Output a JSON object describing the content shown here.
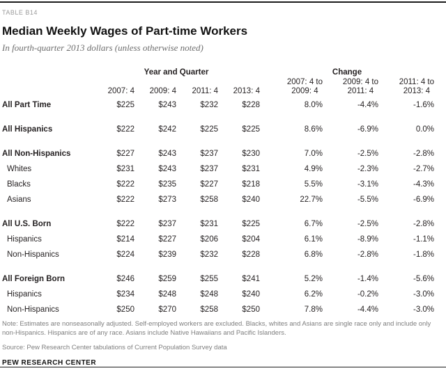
{
  "table_label": "TABLE B14",
  "colors": {
    "rule": "#1a1a1a",
    "text": "#231f20",
    "label_gray": "#9b9b9b",
    "subtitle_gray": "#6d6d6d",
    "note_gray": "#7e7e7e"
  },
  "chart_data": {
    "type": "table",
    "title": "Median Weekly Wages of Part-time Workers",
    "subtitle": "In fourth-quarter 2013 dollars (unless otherwise noted)",
    "column_groups": [
      {
        "label": "Year and Quarter",
        "span": 4
      },
      {
        "label": "Change",
        "span": 3
      }
    ],
    "columns": [
      "2007: 4",
      "2009: 4",
      "2011: 4",
      "2013: 4",
      "2007: 4 to\n2009: 4",
      "2009: 4 to\n2011: 4",
      "2011: 4 to\n2013: 4"
    ],
    "rows": [
      {
        "label": "All Part Time",
        "bold": true,
        "gap_after": true,
        "values": [
          "$225",
          "$243",
          "$232",
          "$228",
          "8.0%",
          "-4.4%",
          "-1.6%"
        ]
      },
      {
        "label": "All Hispanics",
        "bold": true,
        "gap_after": true,
        "values": [
          "$222",
          "$242",
          "$225",
          "$225",
          "8.6%",
          "-6.9%",
          "0.0%"
        ]
      },
      {
        "label": "All Non-Hispanics",
        "bold": true,
        "gap_after": false,
        "values": [
          "$227",
          "$243",
          "$237",
          "$230",
          "7.0%",
          "-2.5%",
          "-2.8%"
        ]
      },
      {
        "label": "Whites",
        "bold": false,
        "gap_after": false,
        "values": [
          "$231",
          "$243",
          "$237",
          "$231",
          "4.9%",
          "-2.3%",
          "-2.7%"
        ]
      },
      {
        "label": "Blacks",
        "bold": false,
        "gap_after": false,
        "values": [
          "$222",
          "$235",
          "$227",
          "$218",
          "5.5%",
          "-3.1%",
          "-4.3%"
        ]
      },
      {
        "label": "Asians",
        "bold": false,
        "gap_after": true,
        "values": [
          "$222",
          "$273",
          "$258",
          "$240",
          "22.7%",
          "-5.5%",
          "-6.9%"
        ]
      },
      {
        "label": "All U.S. Born",
        "bold": true,
        "gap_after": false,
        "values": [
          "$222",
          "$237",
          "$231",
          "$225",
          "6.7%",
          "-2.5%",
          "-2.8%"
        ]
      },
      {
        "label": "Hispanics",
        "bold": false,
        "gap_after": false,
        "values": [
          "$214",
          "$227",
          "$206",
          "$204",
          "6.1%",
          "-8.9%",
          "-1.1%"
        ]
      },
      {
        "label": "Non-Hispanics",
        "bold": false,
        "gap_after": true,
        "values": [
          "$224",
          "$239",
          "$232",
          "$228",
          "6.8%",
          "-2.8%",
          "-1.8%"
        ]
      },
      {
        "label": "All Foreign Born",
        "bold": true,
        "gap_after": false,
        "values": [
          "$246",
          "$259",
          "$255",
          "$241",
          "5.2%",
          "-1.4%",
          "-5.6%"
        ]
      },
      {
        "label": "Hispanics",
        "bold": false,
        "gap_after": false,
        "values": [
          "$234",
          "$248",
          "$248",
          "$240",
          "6.2%",
          "-0.2%",
          "-3.0%"
        ]
      },
      {
        "label": "Non-Hispanics",
        "bold": false,
        "gap_after": false,
        "values": [
          "$250",
          "$270",
          "$258",
          "$250",
          "7.8%",
          "-4.4%",
          "-3.0%"
        ]
      }
    ],
    "note": "Note: Estimates are nonseasonally adjusted. Self-employed workers are excluded. Blacks, whites and Asians are single race only and include only non-Hispanics. Hispanics are of any race. Asians include Native Hawaiians and Pacific Islanders.",
    "source": "Source: Pew Research Center tabulations of Current Population Survey data",
    "branding": "PEW RESEARCH CENTER"
  }
}
